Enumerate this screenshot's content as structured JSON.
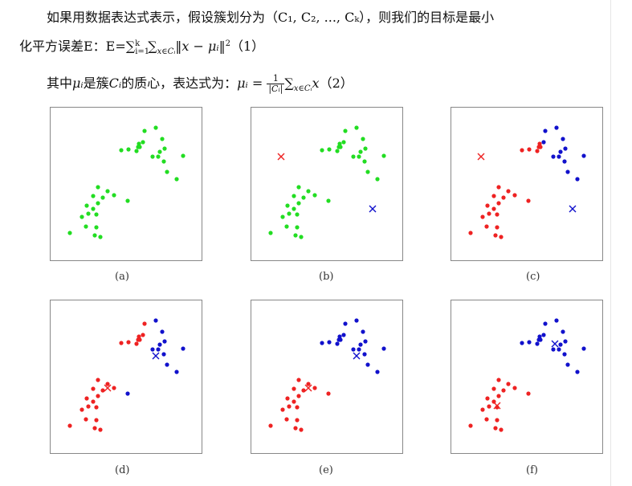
{
  "text": {
    "line1": "如果用数据表达式表示，假设簇划分为（C₁, C₂, ..., Cₖ），则我们的目标是最小",
    "line2_prefix": "化平方误差E：E=",
    "line2_formula": "∑",
    "line2_sub": "i=1",
    "line2_sup": "k",
    "line2_rest": "∑",
    "line2_rest_sub": "x∈Cᵢ",
    "line2_norm": "‖x − μᵢ‖",
    "line2_norm_sup": "2",
    "line2_tag": "（1）",
    "line3_prefix": "其中",
    "line3_mu": "μᵢ",
    "line3_mid": "是簇",
    "line3_c": "Cᵢ",
    "line3_mid2": "的质心，表达式为：",
    "line3_mu2": "μᵢ = ",
    "line3_frac_num": "1",
    "line3_frac_den": "|Cᵢ|",
    "line3_sum": "∑",
    "line3_sum_sub": "x∈Cᵢ",
    "line3_x": "x",
    "line3_tag": "（2）"
  },
  "captions": [
    "(a)",
    "(b)",
    "(c)",
    "(d)",
    "(e)",
    "(f)"
  ],
  "colors": {
    "green": "#22dd22",
    "red": "#ee2222",
    "blue": "#1111cc",
    "frame": "#888888"
  },
  "chart_data": [
    {
      "panel": "a",
      "type": "scatter",
      "points": [
        {
          "x": 0.48,
          "y": 0.18,
          "c": "green"
        }
      ]
    },
    {
      "panel": "b",
      "type": "scatter",
      "centroids": [
        {
          "c": "red"
        },
        {
          "c": "blue"
        }
      ]
    },
    {
      "panel": "c",
      "type": "scatter"
    },
    {
      "panel": "d",
      "type": "scatter"
    },
    {
      "panel": "e",
      "type": "scatter"
    },
    {
      "panel": "f",
      "type": "scatter"
    }
  ]
}
